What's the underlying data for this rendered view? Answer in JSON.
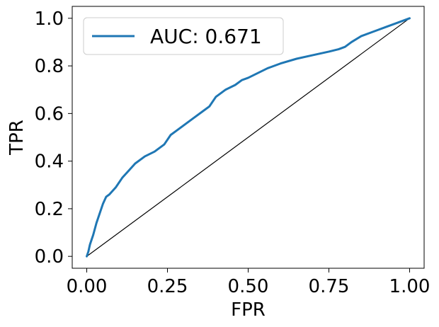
{
  "chart_data": {
    "type": "line",
    "xlabel": "FPR",
    "ylabel": "TPR",
    "xlim": [
      -0.045,
      1.045
    ],
    "ylim": [
      -0.05,
      1.05
    ],
    "x_ticks": [
      {
        "value": 0.0,
        "label": "0.00"
      },
      {
        "value": 0.25,
        "label": "0.25"
      },
      {
        "value": 0.5,
        "label": "0.50"
      },
      {
        "value": 0.75,
        "label": "0.75"
      },
      {
        "value": 1.0,
        "label": "1.00"
      }
    ],
    "y_ticks": [
      {
        "value": 0.0,
        "label": "0.0"
      },
      {
        "value": 0.2,
        "label": "0.2"
      },
      {
        "value": 0.4,
        "label": "0.4"
      },
      {
        "value": 0.6,
        "label": "0.6"
      },
      {
        "value": 0.8,
        "label": "0.8"
      },
      {
        "value": 1.0,
        "label": "1.0"
      }
    ],
    "grid": false,
    "legend": {
      "placement": "top-left",
      "entries": [
        {
          "label": "AUC: 0.671",
          "color": "#1f77b4"
        }
      ]
    },
    "series": [
      {
        "name": "AUC: 0.671",
        "color": "#1f77b4",
        "x": [
          0.0,
          0.005,
          0.01,
          0.02,
          0.03,
          0.04,
          0.05,
          0.06,
          0.07,
          0.09,
          0.11,
          0.13,
          0.15,
          0.18,
          0.21,
          0.24,
          0.26,
          0.28,
          0.3,
          0.33,
          0.36,
          0.38,
          0.4,
          0.43,
          0.46,
          0.48,
          0.5,
          0.53,
          0.56,
          0.6,
          0.65,
          0.7,
          0.75,
          0.78,
          0.8,
          0.82,
          0.85,
          0.88,
          0.9,
          0.93,
          0.96,
          1.0
        ],
        "y": [
          0.0,
          0.02,
          0.05,
          0.09,
          0.14,
          0.18,
          0.22,
          0.25,
          0.26,
          0.29,
          0.33,
          0.36,
          0.39,
          0.42,
          0.44,
          0.47,
          0.51,
          0.53,
          0.55,
          0.58,
          0.61,
          0.63,
          0.67,
          0.7,
          0.72,
          0.74,
          0.75,
          0.77,
          0.79,
          0.81,
          0.83,
          0.845,
          0.86,
          0.87,
          0.88,
          0.9,
          0.925,
          0.94,
          0.95,
          0.965,
          0.98,
          1.0
        ]
      },
      {
        "name": "",
        "color": "#000000",
        "x": [
          0.0,
          1.0
        ],
        "y": [
          0.0,
          1.0
        ]
      }
    ]
  }
}
